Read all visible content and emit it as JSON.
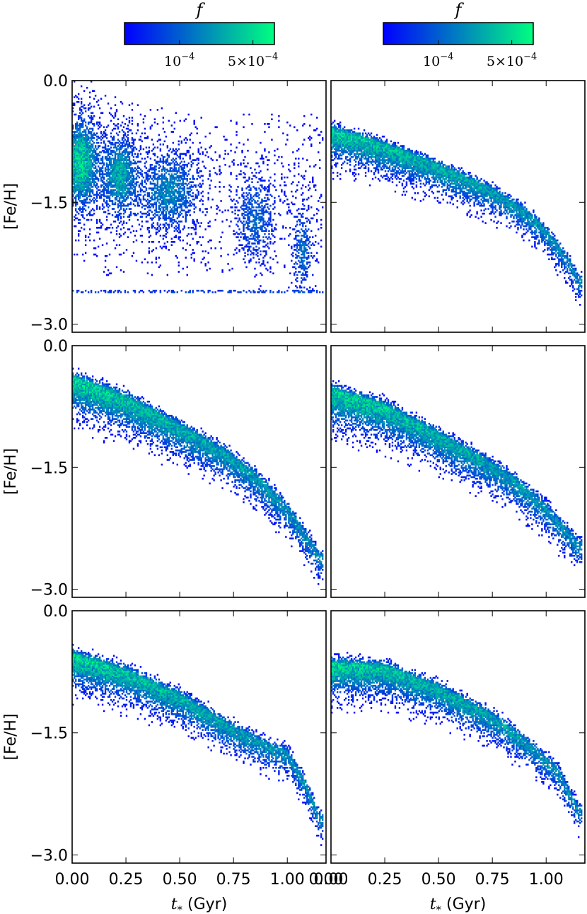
{
  "chart_data": {
    "type": "heatmap",
    "layout": "3 rows x 2 columns, shared axes",
    "xlabel": "t_* (Gyr)",
    "xlabel_symbol": "t",
    "xlabel_subscript": "*",
    "xlabel_unit": " (Gyr)",
    "ylabel": "[Fe/H]",
    "xlim": [
      0.0,
      1.18
    ],
    "ylim": [
      -3.1,
      0.0
    ],
    "xticks": [
      "0.00",
      "0.25",
      "0.50",
      "0.75",
      "1.00"
    ],
    "xtick_values": [
      0.0,
      0.25,
      0.5,
      0.75,
      1.0
    ],
    "xtick_last_left_col": "0.00",
    "yticks": [
      "0.0",
      "−1.5",
      "−3.0"
    ],
    "ytick_values": [
      0.0,
      -1.5,
      -3.0
    ],
    "colorbar": {
      "label": "f",
      "tick_labels": [
        "10^-4",
        "5×10^-4"
      ],
      "tick_values": [
        0.0001,
        0.0005
      ],
      "range": [
        3e-05,
        0.0008
      ],
      "colormap": "winter",
      "color_low": "#0000ff",
      "color_high": "#00ff80"
    },
    "panels": [
      {
        "row": 0,
        "col": 0,
        "pattern": "diffuse",
        "clumps": [
          {
            "t": 0.04,
            "feh": -1.0,
            "st": 0.05,
            "sf": 0.35,
            "w": 1.0
          },
          {
            "t": 0.22,
            "feh": -1.15,
            "st": 0.05,
            "sf": 0.3,
            "w": 0.8
          },
          {
            "t": 0.45,
            "feh": -1.35,
            "st": 0.08,
            "sf": 0.3,
            "w": 0.6
          },
          {
            "t": 0.85,
            "feh": -1.7,
            "st": 0.05,
            "sf": 0.3,
            "w": 0.45
          },
          {
            "t": 1.07,
            "feh": -2.1,
            "st": 0.025,
            "sf": 0.3,
            "w": 0.5
          }
        ],
        "floor_feh": -2.6
      },
      {
        "row": 0,
        "col": 1,
        "pattern": "ridge",
        "ridge": [
          [
            0.0,
            -0.6
          ],
          [
            0.25,
            -0.8
          ],
          [
            0.5,
            -1.05
          ],
          [
            0.75,
            -1.35
          ],
          [
            0.9,
            -1.6
          ],
          [
            1.0,
            -1.85
          ],
          [
            1.1,
            -2.2
          ],
          [
            1.15,
            -2.45
          ]
        ],
        "scatter_down": 0.4,
        "scatter_up": 0.08
      },
      {
        "row": 1,
        "col": 0,
        "pattern": "ridge",
        "ridge": [
          [
            0.0,
            -0.4
          ],
          [
            0.25,
            -0.65
          ],
          [
            0.5,
            -1.0
          ],
          [
            0.7,
            -1.3
          ],
          [
            0.85,
            -1.6
          ],
          [
            1.0,
            -2.0
          ],
          [
            1.1,
            -2.4
          ],
          [
            1.15,
            -2.6
          ]
        ],
        "scatter_down": 0.45,
        "scatter_up": 0.1
      },
      {
        "row": 1,
        "col": 1,
        "pattern": "ridge",
        "ridge": [
          [
            0.0,
            -0.55
          ],
          [
            0.25,
            -0.75
          ],
          [
            0.5,
            -1.1
          ],
          [
            0.7,
            -1.4
          ],
          [
            0.85,
            -1.65
          ],
          [
            1.0,
            -2.0
          ],
          [
            1.15,
            -2.45
          ]
        ],
        "scatter_down": 0.45,
        "scatter_up": 0.1
      },
      {
        "row": 2,
        "col": 0,
        "pattern": "ridge",
        "ridge": [
          [
            0.0,
            -0.55
          ],
          [
            0.25,
            -0.75
          ],
          [
            0.5,
            -1.05
          ],
          [
            0.75,
            -1.45
          ],
          [
            0.9,
            -1.65
          ],
          [
            1.0,
            -1.75
          ],
          [
            1.08,
            -2.1
          ],
          [
            1.15,
            -2.55
          ]
        ],
        "scatter_down": 0.4,
        "scatter_up": 0.1
      },
      {
        "row": 2,
        "col": 1,
        "pattern": "ridge",
        "ridge": [
          [
            0.0,
            -0.65
          ],
          [
            0.25,
            -0.7
          ],
          [
            0.5,
            -0.95
          ],
          [
            0.75,
            -1.3
          ],
          [
            0.9,
            -1.6
          ],
          [
            1.05,
            -1.95
          ],
          [
            1.15,
            -2.45
          ]
        ],
        "scatter_down": 0.4,
        "scatter_up": 0.1
      }
    ]
  }
}
